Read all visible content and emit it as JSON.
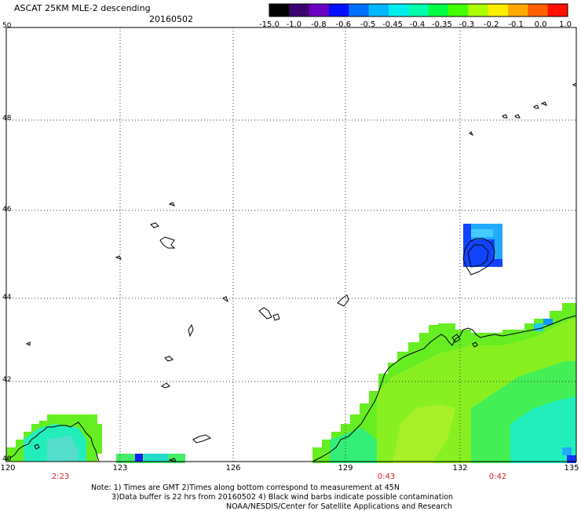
{
  "header": {
    "title": "ASCAT 25KM MLE-2 descending",
    "date": "20160502"
  },
  "colorbar": {
    "labels": [
      "-15.0",
      "-1.0",
      "-0.8",
      "-0.6",
      "-0.5",
      "-0.45",
      "-0.4",
      "-0.35",
      "-0.3",
      "-0.2",
      "-0.1",
      "0.0",
      "1.0"
    ],
    "colors": [
      "#000000",
      "#3a0070",
      "#6a00c0",
      "#0010ff",
      "#0070ff",
      "#00b8ff",
      "#00eeee",
      "#00ffaa",
      "#00ff44",
      "#44ff00",
      "#aaff00",
      "#ffee00",
      "#ffaa00",
      "#ff6000",
      "#ff1000"
    ]
  },
  "map": {
    "latitudes": [
      "50",
      "48",
      "46",
      "44",
      "42",
      "40"
    ],
    "longitudes": [
      "120",
      "123",
      "126",
      "129",
      "132",
      "135"
    ],
    "times": [
      "2:23",
      "0:43",
      "0:42"
    ]
  },
  "footer": {
    "line1": "Note: 1) Times are GMT 2)Times along bottom correspond to measurement at 45N",
    "line2": "3)Data buffer is 22 hrs from 20160502 4) Black wind barbs indicate possible contamination",
    "line3": "NOAA/NESDIS/Center for Satellite Applications and Research"
  }
}
